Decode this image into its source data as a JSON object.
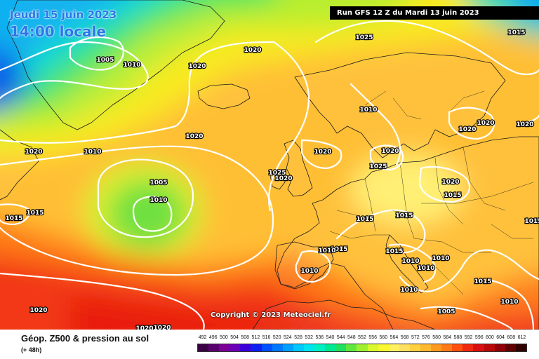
{
  "map": {
    "title_date": "Jeudi 15 juin 2023",
    "title_time": "14:00 locale",
    "run_info": "Run GFS 12 Z du Mardi 13 juin 2023",
    "copyright": "Copyright © 2023 Meteociel.fr"
  },
  "isobar_labels": [
    "1005",
    "1010",
    "1020",
    "1020",
    "1025",
    "1015",
    "1020",
    "1020",
    "1010",
    "1005",
    "1010",
    "1015",
    "1015",
    "1010",
    "1020",
    "1020",
    "1025",
    "1025",
    "1020",
    "1020",
    "1020",
    "1020",
    "1020",
    "1015",
    "1015",
    "1015",
    "1015",
    "1010",
    "1015",
    "1010",
    "1010",
    "1010",
    "1010",
    "1010",
    "1015",
    "1015",
    "1010",
    "1020",
    "1005",
    "1020",
    "1020"
  ],
  "legend": {
    "title": "Géop. Z500 & pression au sol",
    "subtitle": "(+ 48h)",
    "scale_values": [
      "492",
      "496",
      "500",
      "504",
      "508",
      "512",
      "516",
      "520",
      "524",
      "528",
      "532",
      "536",
      "540",
      "544",
      "548",
      "552",
      "556",
      "560",
      "564",
      "568",
      "572",
      "576",
      "580",
      "584",
      "588",
      "592",
      "596",
      "600",
      "604",
      "608",
      "612"
    ],
    "scale_colors": [
      "#3a0044",
      "#5a006e",
      "#7a0096",
      "#6a00b8",
      "#3c00d8",
      "#1020f0",
      "#0050ff",
      "#0078ff",
      "#00a0ff",
      "#00c8ff",
      "#00e4f0",
      "#00f0c0",
      "#00e890",
      "#20e060",
      "#60e840",
      "#a0f030",
      "#d8f830",
      "#f8f830",
      "#fff060",
      "#ffe060",
      "#ffd040",
      "#ffb830",
      "#ff9a20",
      "#ff7a18",
      "#ff5010",
      "#f02810",
      "#d81010",
      "#b80808",
      "#900008",
      "#600000",
      "#300000"
    ]
  }
}
